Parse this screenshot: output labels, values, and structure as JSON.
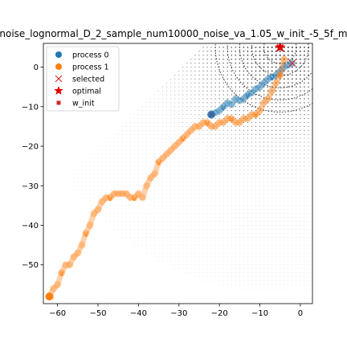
{
  "chart_data": {
    "type": "scatter",
    "title": "noise_lognormal_D_2_sample_num10000_noise_va_1.05_w_init_-5_5f_m",
    "xlabel": "",
    "ylabel": "",
    "xlim": [
      -63.5,
      3.0
    ],
    "ylim": [
      -59.8,
      6.0
    ],
    "xticks": [
      -60,
      -50,
      -40,
      -30,
      -20,
      -10,
      0
    ],
    "yticks": [
      0,
      -10,
      -20,
      -30,
      -40,
      -50
    ],
    "xtick_labels": [
      "−60",
      "−50",
      "−40",
      "−30",
      "−20",
      "−10",
      "0"
    ],
    "ytick_labels": [
      "0",
      "−10",
      "−20",
      "−30",
      "−40",
      "−50"
    ],
    "grid": false,
    "legend_position": "top-left",
    "legend": [
      {
        "label": "process 0",
        "marker": "circle",
        "color": "#1f77b4"
      },
      {
        "label": "process 1",
        "marker": "circle",
        "color": "#ff7f0e"
      },
      {
        "label": "selected",
        "marker": "x",
        "color": "#d62728"
      },
      {
        "label": "optimal",
        "marker": "star",
        "color": "#e00000"
      },
      {
        "label": "w_init",
        "marker": "square",
        "color": "#d62728"
      }
    ],
    "series": [
      {
        "name": "process 0",
        "color": "#1f77b4",
        "x": [
          -22,
          -21,
          -20,
          -19,
          -18,
          -17,
          -16,
          -15,
          -14,
          -13,
          -12,
          -11,
          -10,
          -9,
          -8,
          -7,
          -6,
          -5,
          -4,
          -3,
          -2
        ],
        "y": [
          -12,
          -11.5,
          -11,
          -10,
          -9,
          -9.5,
          -8,
          -8.5,
          -8,
          -7,
          -6.5,
          -5.5,
          -5,
          -4,
          -3,
          -2.5,
          -2,
          -1,
          0,
          0.5,
          1
        ]
      },
      {
        "name": "process 1",
        "color": "#ff7f0e",
        "x": [
          -62,
          -61,
          -60,
          -59,
          -58,
          -57,
          -56,
          -55,
          -54,
          -53,
          -52,
          -51,
          -50,
          -49,
          -48,
          -47,
          -46,
          -45,
          -44,
          -43,
          -42,
          -41,
          -40,
          -39,
          -38,
          -37,
          -36,
          -35,
          -34,
          -33,
          -32,
          -31,
          -30,
          -29,
          -28,
          -27,
          -26,
          -25,
          -24,
          -23,
          -22,
          -21,
          -20,
          -19,
          -18,
          -17,
          -16,
          -15,
          -14,
          -13,
          -12,
          -11,
          -10,
          -9,
          -8,
          -7,
          -6,
          -5,
          -4
        ],
        "y": [
          -58,
          -56,
          -55,
          -52,
          -50,
          -50,
          -48,
          -47,
          -45,
          -42,
          -40,
          -37,
          -36,
          -34,
          -33,
          -33,
          -32,
          -32,
          -32,
          -32,
          -33,
          -33,
          -32,
          -33,
          -30,
          -28,
          -27,
          -24,
          -23,
          -22,
          -21,
          -20,
          -19,
          -18,
          -17,
          -16,
          -15,
          -15,
          -14,
          -14,
          -15,
          -15,
          -14,
          -14,
          -13,
          -13,
          -14,
          -14,
          -13,
          -13,
          -12,
          -12,
          -11,
          -9,
          -8,
          -6,
          -4,
          -2,
          2
        ]
      }
    ],
    "selected": [
      {
        "x": -5,
        "y": 5
      },
      {
        "x": -2,
        "y": 1
      }
    ],
    "optimal": {
      "x": -5,
      "y": 5
    },
    "w_init": [
      {
        "x": -22,
        "y": -12
      },
      {
        "x": -62,
        "y": -58
      }
    ]
  }
}
